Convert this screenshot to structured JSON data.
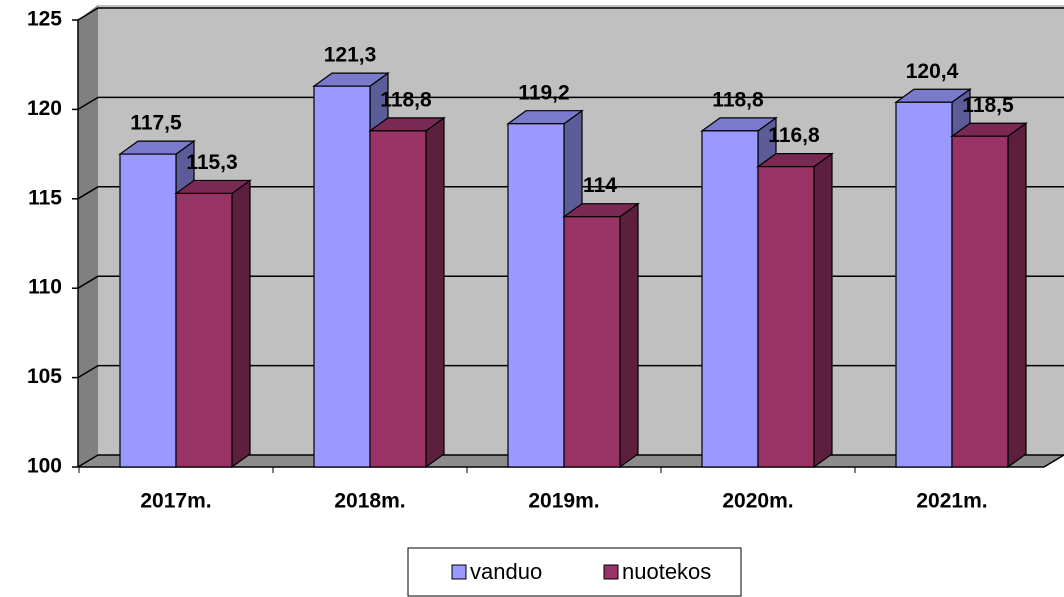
{
  "chart_data": {
    "type": "bar3d",
    "categories": [
      "2017m.",
      "2018m.",
      "2019m.",
      "2020m.",
      "2021m."
    ],
    "series": [
      {
        "name": "vanduo",
        "color": "#9999ff",
        "values": [
          117.5,
          121.3,
          119.2,
          118.8,
          120.4
        ],
        "value_labels": [
          "117,5",
          "121,3",
          "119,2",
          "118,8",
          "120,4"
        ]
      },
      {
        "name": "nuotekos",
        "color": "#993366",
        "values": [
          115.3,
          118.8,
          114,
          116.8,
          118.5
        ],
        "value_labels": [
          "115,3",
          "118,8",
          "114",
          "116,8",
          "118,5"
        ]
      }
    ],
    "ylim": [
      100,
      125
    ],
    "yticks": [
      100,
      105,
      110,
      115,
      120,
      125
    ],
    "grid": true,
    "legend": "bottom"
  }
}
